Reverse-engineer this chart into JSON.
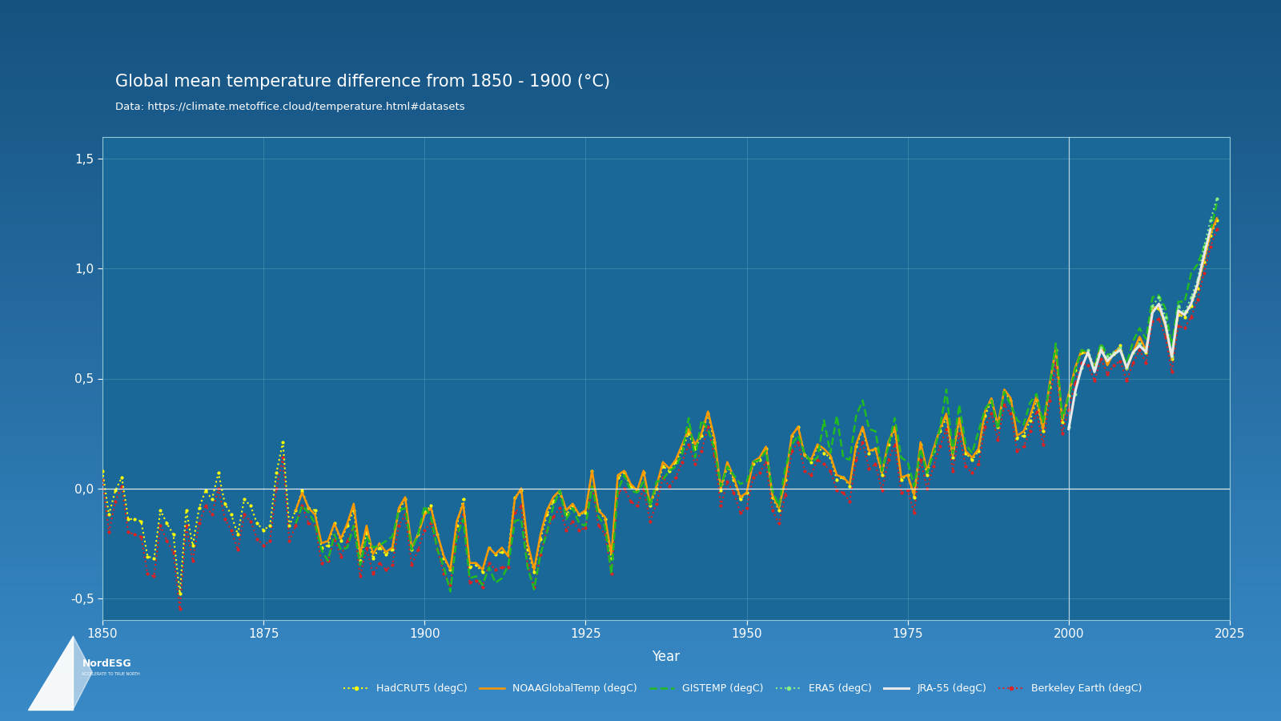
{
  "title": "Global mean temperature difference from 1850 - 1900 (°C)",
  "subtitle": "Data: https://climate.metoffice.cloud/temperature.html#datasets",
  "xlabel": "Year",
  "xlim": [
    1850,
    2025
  ],
  "ylim": [
    -0.6,
    1.6
  ],
  "yticks": [
    -0.5,
    0.0,
    0.5,
    1.0,
    1.5
  ],
  "ytick_labels": [
    "-0,5",
    "0,0",
    "0,5",
    "1,0",
    "1,5"
  ],
  "xticks": [
    1850,
    1875,
    1900,
    1925,
    1950,
    1975,
    2000,
    2025
  ],
  "years": [
    1850,
    1851,
    1852,
    1853,
    1854,
    1855,
    1856,
    1857,
    1858,
    1859,
    1860,
    1861,
    1862,
    1863,
    1864,
    1865,
    1866,
    1867,
    1868,
    1869,
    1870,
    1871,
    1872,
    1873,
    1874,
    1875,
    1876,
    1877,
    1878,
    1879,
    1880,
    1881,
    1882,
    1883,
    1884,
    1885,
    1886,
    1887,
    1888,
    1889,
    1890,
    1891,
    1892,
    1893,
    1894,
    1895,
    1896,
    1897,
    1898,
    1899,
    1900,
    1901,
    1902,
    1903,
    1904,
    1905,
    1906,
    1907,
    1908,
    1909,
    1910,
    1911,
    1912,
    1913,
    1914,
    1915,
    1916,
    1917,
    1918,
    1919,
    1920,
    1921,
    1922,
    1923,
    1924,
    1925,
    1926,
    1927,
    1928,
    1929,
    1930,
    1931,
    1932,
    1933,
    1934,
    1935,
    1936,
    1937,
    1938,
    1939,
    1940,
    1941,
    1942,
    1943,
    1944,
    1945,
    1946,
    1947,
    1948,
    1949,
    1950,
    1951,
    1952,
    1953,
    1954,
    1955,
    1956,
    1957,
    1958,
    1959,
    1960,
    1961,
    1962,
    1963,
    1964,
    1965,
    1966,
    1967,
    1968,
    1969,
    1970,
    1971,
    1972,
    1973,
    1974,
    1975,
    1976,
    1977,
    1978,
    1979,
    1980,
    1981,
    1982,
    1983,
    1984,
    1985,
    1986,
    1987,
    1988,
    1989,
    1990,
    1991,
    1992,
    1993,
    1994,
    1995,
    1996,
    1997,
    1998,
    1999,
    2000,
    2001,
    2002,
    2003,
    2004,
    2005,
    2006,
    2007,
    2008,
    2009,
    2010,
    2011,
    2012,
    2013,
    2014,
    2015,
    2016,
    2017,
    2018,
    2019,
    2020,
    2021,
    2022,
    2023
  ],
  "HadCRUT5": [
    0.08,
    -0.12,
    -0.01,
    0.05,
    -0.14,
    -0.14,
    -0.15,
    -0.31,
    -0.32,
    -0.1,
    -0.16,
    -0.21,
    -0.48,
    -0.1,
    -0.26,
    -0.09,
    -0.01,
    -0.05,
    0.07,
    -0.07,
    -0.12,
    -0.21,
    -0.05,
    -0.08,
    -0.16,
    -0.19,
    -0.17,
    0.07,
    0.21,
    -0.17,
    -0.1,
    -0.01,
    -0.09,
    -0.1,
    -0.27,
    -0.26,
    -0.16,
    -0.24,
    -0.17,
    -0.1,
    -0.33,
    -0.2,
    -0.32,
    -0.27,
    -0.3,
    -0.28,
    -0.1,
    -0.05,
    -0.28,
    -0.21,
    -0.11,
    -0.08,
    -0.21,
    -0.32,
    -0.37,
    -0.17,
    -0.05,
    -0.36,
    -0.35,
    -0.38,
    -0.27,
    -0.3,
    -0.29,
    -0.29,
    -0.04,
    -0.01,
    -0.28,
    -0.38,
    -0.23,
    -0.12,
    -0.06,
    -0.02,
    -0.12,
    -0.08,
    -0.12,
    -0.11,
    0.08,
    -0.1,
    -0.14,
    -0.32,
    0.05,
    0.07,
    0.01,
    -0.01,
    0.07,
    -0.08,
    0.0,
    0.1,
    0.08,
    0.12,
    0.18,
    0.25,
    0.18,
    0.24,
    0.34,
    0.21,
    -0.01,
    0.1,
    0.04,
    -0.05,
    -0.02,
    0.11,
    0.13,
    0.18,
    -0.04,
    -0.1,
    0.04,
    0.24,
    0.28,
    0.15,
    0.12,
    0.19,
    0.16,
    0.14,
    0.04,
    0.05,
    0.01,
    0.19,
    0.27,
    0.16,
    0.18,
    0.06,
    0.2,
    0.27,
    0.04,
    0.06,
    -0.04,
    0.2,
    0.06,
    0.17,
    0.26,
    0.32,
    0.14,
    0.31,
    0.16,
    0.13,
    0.17,
    0.33,
    0.4,
    0.28,
    0.44,
    0.4,
    0.23,
    0.24,
    0.31,
    0.4,
    0.26,
    0.46,
    0.63,
    0.3,
    0.42,
    0.54,
    0.62,
    0.61,
    0.55,
    0.64,
    0.57,
    0.61,
    0.65,
    0.55,
    0.62,
    0.68,
    0.62,
    0.81,
    0.82,
    0.74,
    0.59,
    0.79,
    0.78,
    0.83,
    0.91,
    1.03,
    1.15,
    1.22
  ],
  "NOAAGlobalTemp": [
    null,
    null,
    null,
    null,
    null,
    null,
    null,
    null,
    null,
    null,
    null,
    null,
    null,
    null,
    null,
    null,
    null,
    null,
    null,
    null,
    null,
    null,
    null,
    null,
    null,
    null,
    null,
    null,
    null,
    null,
    -0.1,
    -0.02,
    -0.09,
    -0.12,
    -0.25,
    -0.24,
    -0.16,
    -0.23,
    -0.16,
    -0.07,
    -0.3,
    -0.17,
    -0.3,
    -0.25,
    -0.29,
    -0.27,
    -0.09,
    -0.04,
    -0.27,
    -0.21,
    -0.12,
    -0.09,
    -0.21,
    -0.31,
    -0.37,
    -0.15,
    -0.07,
    -0.34,
    -0.34,
    -0.37,
    -0.27,
    -0.3,
    -0.27,
    -0.31,
    -0.05,
    0.0,
    -0.25,
    -0.37,
    -0.21,
    -0.1,
    -0.04,
    -0.01,
    -0.1,
    -0.07,
    -0.12,
    -0.1,
    0.08,
    -0.1,
    -0.13,
    -0.3,
    0.06,
    0.08,
    0.02,
    -0.01,
    0.08,
    -0.07,
    0.01,
    0.12,
    0.09,
    0.13,
    0.2,
    0.27,
    0.2,
    0.25,
    0.35,
    0.23,
    0.0,
    0.12,
    0.05,
    -0.04,
    -0.02,
    0.12,
    0.14,
    0.19,
    -0.03,
    -0.09,
    0.04,
    0.24,
    0.28,
    0.15,
    0.13,
    0.2,
    0.18,
    0.15,
    0.06,
    0.05,
    0.02,
    0.2,
    0.28,
    0.17,
    0.18,
    0.07,
    0.21,
    0.28,
    0.05,
    0.06,
    -0.03,
    0.21,
    0.08,
    0.18,
    0.27,
    0.34,
    0.15,
    0.32,
    0.17,
    0.14,
    0.18,
    0.35,
    0.41,
    0.29,
    0.45,
    0.41,
    0.24,
    0.26,
    0.33,
    0.42,
    0.27,
    0.47,
    0.64,
    0.31,
    0.43,
    0.55,
    0.63,
    0.61,
    0.55,
    0.65,
    0.56,
    0.62,
    0.64,
    0.54,
    0.62,
    0.69,
    0.63,
    0.82,
    0.83,
    0.74,
    0.59,
    0.8,
    0.79,
    0.84,
    0.92,
    1.04,
    1.16,
    1.23
  ],
  "GISTEMP": [
    null,
    null,
    null,
    null,
    null,
    null,
    null,
    null,
    null,
    null,
    null,
    null,
    null,
    null,
    null,
    null,
    null,
    null,
    null,
    null,
    null,
    null,
    null,
    null,
    null,
    null,
    null,
    null,
    null,
    null,
    -0.16,
    -0.08,
    -0.11,
    -0.16,
    -0.28,
    -0.33,
    -0.21,
    -0.28,
    -0.27,
    -0.17,
    -0.35,
    -0.22,
    -0.27,
    -0.26,
    -0.24,
    -0.22,
    -0.1,
    -0.09,
    -0.28,
    -0.21,
    -0.08,
    -0.13,
    -0.28,
    -0.36,
    -0.47,
    -0.22,
    -0.14,
    -0.41,
    -0.4,
    -0.44,
    -0.36,
    -0.43,
    -0.41,
    -0.35,
    -0.15,
    -0.14,
    -0.36,
    -0.46,
    -0.3,
    -0.2,
    -0.08,
    -0.01,
    -0.14,
    -0.09,
    -0.16,
    -0.17,
    0.01,
    -0.13,
    -0.17,
    -0.39,
    -0.01,
    0.06,
    -0.01,
    -0.02,
    0.03,
    -0.08,
    0.03,
    0.04,
    0.08,
    0.1,
    0.16,
    0.32,
    0.14,
    0.31,
    0.27,
    0.18,
    0.01,
    0.1,
    0.06,
    0.02,
    0.03,
    0.12,
    0.13,
    0.17,
    -0.01,
    -0.08,
    0.09,
    0.2,
    0.24,
    0.16,
    0.12,
    0.14,
    0.31,
    0.16,
    0.33,
    0.14,
    0.13,
    0.33,
    0.4,
    0.27,
    0.26,
    0.08,
    0.19,
    0.32,
    0.14,
    0.12,
    0.01,
    0.18,
    0.07,
    0.16,
    0.27,
    0.45,
    0.16,
    0.38,
    0.2,
    0.16,
    0.26,
    0.36,
    0.4,
    0.27,
    0.44,
    0.38,
    0.31,
    0.29,
    0.39,
    0.43,
    0.3,
    0.46,
    0.66,
    0.32,
    0.42,
    0.54,
    0.63,
    0.62,
    0.55,
    0.66,
    0.61,
    0.61,
    0.63,
    0.57,
    0.67,
    0.73,
    0.68,
    0.87,
    0.88,
    0.82,
    0.65,
    0.85,
    0.85,
    0.98,
    1.02,
    1.1,
    1.17,
    1.3
  ],
  "ERA5": [
    null,
    null,
    null,
    null,
    null,
    null,
    null,
    null,
    null,
    null,
    null,
    null,
    null,
    null,
    null,
    null,
    null,
    null,
    null,
    null,
    null,
    null,
    null,
    null,
    null,
    null,
    null,
    null,
    null,
    null,
    null,
    null,
    null,
    null,
    null,
    null,
    null,
    null,
    null,
    null,
    null,
    null,
    null,
    null,
    null,
    null,
    null,
    null,
    null,
    null,
    null,
    null,
    null,
    null,
    null,
    null,
    null,
    null,
    null,
    null,
    null,
    null,
    null,
    null,
    null,
    null,
    null,
    null,
    null,
    null,
    null,
    null,
    null,
    null,
    null,
    null,
    null,
    null,
    null,
    null,
    null,
    null,
    null,
    null,
    null,
    null,
    null,
    null,
    null,
    null,
    null,
    null,
    null,
    null,
    null,
    null,
    null,
    null,
    null,
    null,
    null,
    null,
    null,
    null,
    null,
    null,
    null,
    null,
    null,
    null,
    null,
    null,
    null,
    null,
    null,
    null,
    null,
    null,
    null,
    null,
    null,
    null,
    null,
    null,
    null,
    null,
    null,
    null,
    null,
    null,
    null,
    null,
    null,
    null,
    null,
    null,
    null,
    null,
    null,
    null,
    null,
    null,
    null,
    null,
    null,
    null,
    null,
    null,
    null,
    null,
    0.28,
    0.43,
    0.55,
    0.63,
    0.55,
    0.64,
    0.6,
    0.62,
    0.64,
    0.55,
    0.62,
    0.66,
    0.63,
    0.83,
    0.87,
    0.78,
    0.6,
    0.83,
    0.8,
    0.87,
    0.95,
    1.1,
    1.22,
    1.32
  ],
  "JRA55": [
    null,
    null,
    null,
    null,
    null,
    null,
    null,
    null,
    null,
    null,
    null,
    null,
    null,
    null,
    null,
    null,
    null,
    null,
    null,
    null,
    null,
    null,
    null,
    null,
    null,
    null,
    null,
    null,
    null,
    null,
    null,
    null,
    null,
    null,
    null,
    null,
    null,
    null,
    null,
    null,
    null,
    null,
    null,
    null,
    null,
    null,
    null,
    null,
    null,
    null,
    null,
    null,
    null,
    null,
    null,
    null,
    null,
    null,
    null,
    null,
    null,
    null,
    null,
    null,
    null,
    null,
    null,
    null,
    null,
    null,
    null,
    null,
    null,
    null,
    null,
    null,
    null,
    null,
    null,
    null,
    null,
    null,
    null,
    null,
    null,
    null,
    null,
    null,
    null,
    null,
    null,
    null,
    null,
    null,
    null,
    null,
    null,
    null,
    null,
    null,
    null,
    null,
    null,
    null,
    null,
    null,
    null,
    null,
    null,
    null,
    null,
    null,
    null,
    null,
    null,
    null,
    null,
    null,
    null,
    null,
    null,
    null,
    null,
    null,
    null,
    null,
    null,
    null,
    null,
    null,
    null,
    null,
    null,
    null,
    null,
    null,
    null,
    null,
    null,
    null,
    null,
    null,
    null,
    null,
    null,
    null,
    null,
    null,
    null,
    null,
    0.27,
    0.44,
    0.55,
    0.62,
    0.53,
    0.63,
    0.58,
    0.61,
    0.63,
    0.55,
    0.62,
    0.65,
    0.62,
    0.8,
    0.84,
    0.75,
    0.6,
    0.81,
    0.79,
    0.84,
    0.93,
    1.06,
    1.18,
    null
  ],
  "BerkeleyEarth": [
    0.04,
    -0.2,
    -0.06,
    0.01,
    -0.2,
    -0.21,
    -0.22,
    -0.39,
    -0.4,
    -0.17,
    -0.24,
    -0.29,
    -0.55,
    -0.17,
    -0.33,
    -0.16,
    -0.08,
    -0.12,
    0.0,
    -0.14,
    -0.19,
    -0.28,
    -0.12,
    -0.15,
    -0.23,
    -0.26,
    -0.24,
    0.0,
    0.14,
    -0.24,
    -0.17,
    -0.08,
    -0.16,
    -0.17,
    -0.34,
    -0.33,
    -0.23,
    -0.31,
    -0.24,
    -0.17,
    -0.4,
    -0.27,
    -0.39,
    -0.34,
    -0.37,
    -0.35,
    -0.17,
    -0.12,
    -0.35,
    -0.28,
    -0.19,
    -0.16,
    -0.28,
    -0.39,
    -0.44,
    -0.22,
    -0.12,
    -0.43,
    -0.42,
    -0.45,
    -0.34,
    -0.37,
    -0.36,
    -0.36,
    -0.11,
    -0.08,
    -0.35,
    -0.45,
    -0.3,
    -0.19,
    -0.13,
    -0.09,
    -0.19,
    -0.15,
    -0.19,
    -0.18,
    0.01,
    -0.17,
    -0.21,
    -0.39,
    -0.02,
    0.0,
    -0.06,
    -0.08,
    0.0,
    -0.15,
    -0.07,
    0.05,
    0.01,
    0.05,
    0.12,
    0.2,
    0.11,
    0.17,
    0.28,
    0.15,
    -0.08,
    0.03,
    -0.02,
    -0.11,
    -0.09,
    0.05,
    0.07,
    0.12,
    -0.1,
    -0.16,
    -0.03,
    0.17,
    0.21,
    0.08,
    0.06,
    0.13,
    0.11,
    0.08,
    -0.01,
    -0.02,
    -0.06,
    0.13,
    0.21,
    0.09,
    0.11,
    -0.01,
    0.13,
    0.2,
    -0.02,
    -0.01,
    -0.11,
    0.13,
    0.0,
    0.1,
    0.19,
    0.27,
    0.08,
    0.25,
    0.1,
    0.07,
    0.11,
    0.28,
    0.34,
    0.22,
    0.38,
    0.34,
    0.17,
    0.19,
    0.26,
    0.35,
    0.2,
    0.4,
    0.57,
    0.25,
    0.36,
    0.48,
    0.57,
    0.56,
    0.49,
    0.59,
    0.52,
    0.56,
    0.58,
    0.49,
    0.57,
    0.63,
    0.57,
    0.76,
    0.77,
    0.69,
    0.53,
    0.74,
    0.73,
    0.78,
    0.86,
    0.98,
    1.1,
    1.18
  ]
}
